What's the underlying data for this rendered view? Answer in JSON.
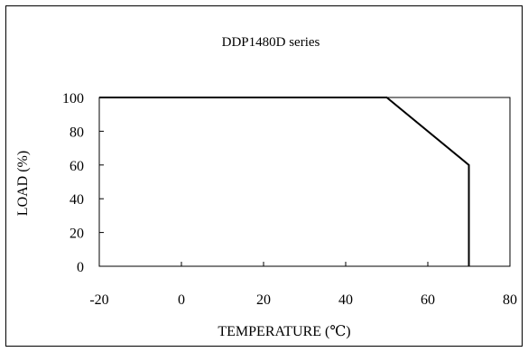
{
  "chart_data": {
    "type": "line",
    "title": "DDP1480D series",
    "xlabel": "TEMPERATURE (℃)",
    "ylabel": "LOAD (%)",
    "xlim": [
      -20,
      80
    ],
    "ylim": [
      0,
      100
    ],
    "x_ticks": [
      "-20",
      "0",
      "20",
      "40",
      "60",
      "80"
    ],
    "y_ticks": [
      "0",
      "20",
      "40",
      "60",
      "80",
      "100"
    ],
    "grid": false,
    "legend": "none",
    "series": [
      {
        "x": [
          -20,
          50,
          70,
          70
        ],
        "y": [
          100,
          100,
          60,
          0
        ]
      }
    ],
    "colors": {
      "line": "#000000",
      "axis": "#000000",
      "background": "#ffffff"
    }
  }
}
